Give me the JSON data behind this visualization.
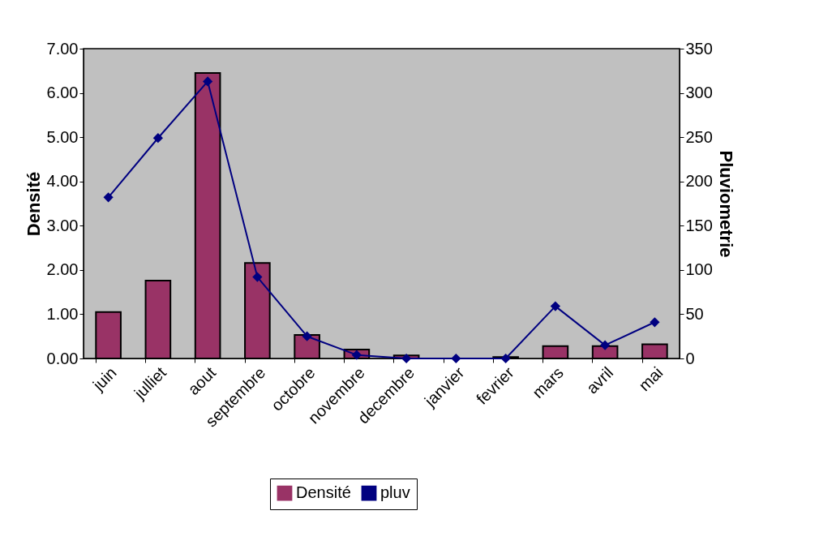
{
  "chart_data": {
    "type": "bar",
    "categories": [
      "juin",
      "julliet",
      "aout",
      "septembre",
      "octobre",
      "novembre",
      "decembre",
      "janvier",
      "fevrier",
      "mars",
      "avril",
      "mai"
    ],
    "series": [
      {
        "name": "Densité",
        "color": "#993366",
        "values": [
          1.05,
          1.76,
          6.45,
          2.16,
          0.53,
          0.2,
          0.07,
          0,
          0.03,
          0.28,
          0.28,
          0.32
        ]
      },
      {
        "name": "pluv",
        "type": "line",
        "axis": "y2",
        "color": "#000080",
        "marker": "diamond",
        "values": [
          182,
          249,
          313,
          92,
          25,
          4,
          0,
          0,
          0,
          59,
          15,
          41
        ]
      }
    ],
    "ylabel": "Densité",
    "y2label": "Pluviometrie",
    "ylim": [
      0,
      7
    ],
    "yticks": [
      {
        "value": 0,
        "label": "0.00"
      },
      {
        "value": 1,
        "label": "1.00"
      },
      {
        "value": 2,
        "label": "2.00"
      },
      {
        "value": 3,
        "label": "3.00"
      },
      {
        "value": 4,
        "label": "4.00"
      },
      {
        "value": 5,
        "label": "5.00"
      },
      {
        "value": 6,
        "label": "6.00"
      },
      {
        "value": 7,
        "label": "7.00"
      }
    ],
    "y2lim": [
      0,
      350
    ],
    "y2ticks": [
      0,
      50,
      100,
      150,
      200,
      250,
      300,
      350
    ],
    "grid": false,
    "legend": "bottom"
  }
}
